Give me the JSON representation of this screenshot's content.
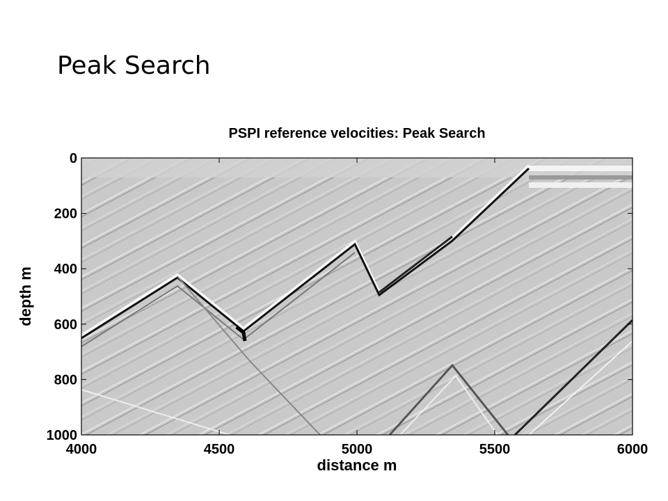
{
  "slide_title": "Peak Search",
  "chart_data": {
    "type": "image",
    "title": "PSPI reference velocities: Peak Search",
    "xlabel": "distance m",
    "ylabel": "depth m",
    "xlim": [
      4000,
      6000
    ],
    "xticks": [
      4000,
      4500,
      5000,
      5500,
      6000
    ],
    "ylim": [
      0,
      1000
    ],
    "yticks": [
      0,
      200,
      400,
      600,
      800,
      1000
    ],
    "y_inverted": true
  }
}
